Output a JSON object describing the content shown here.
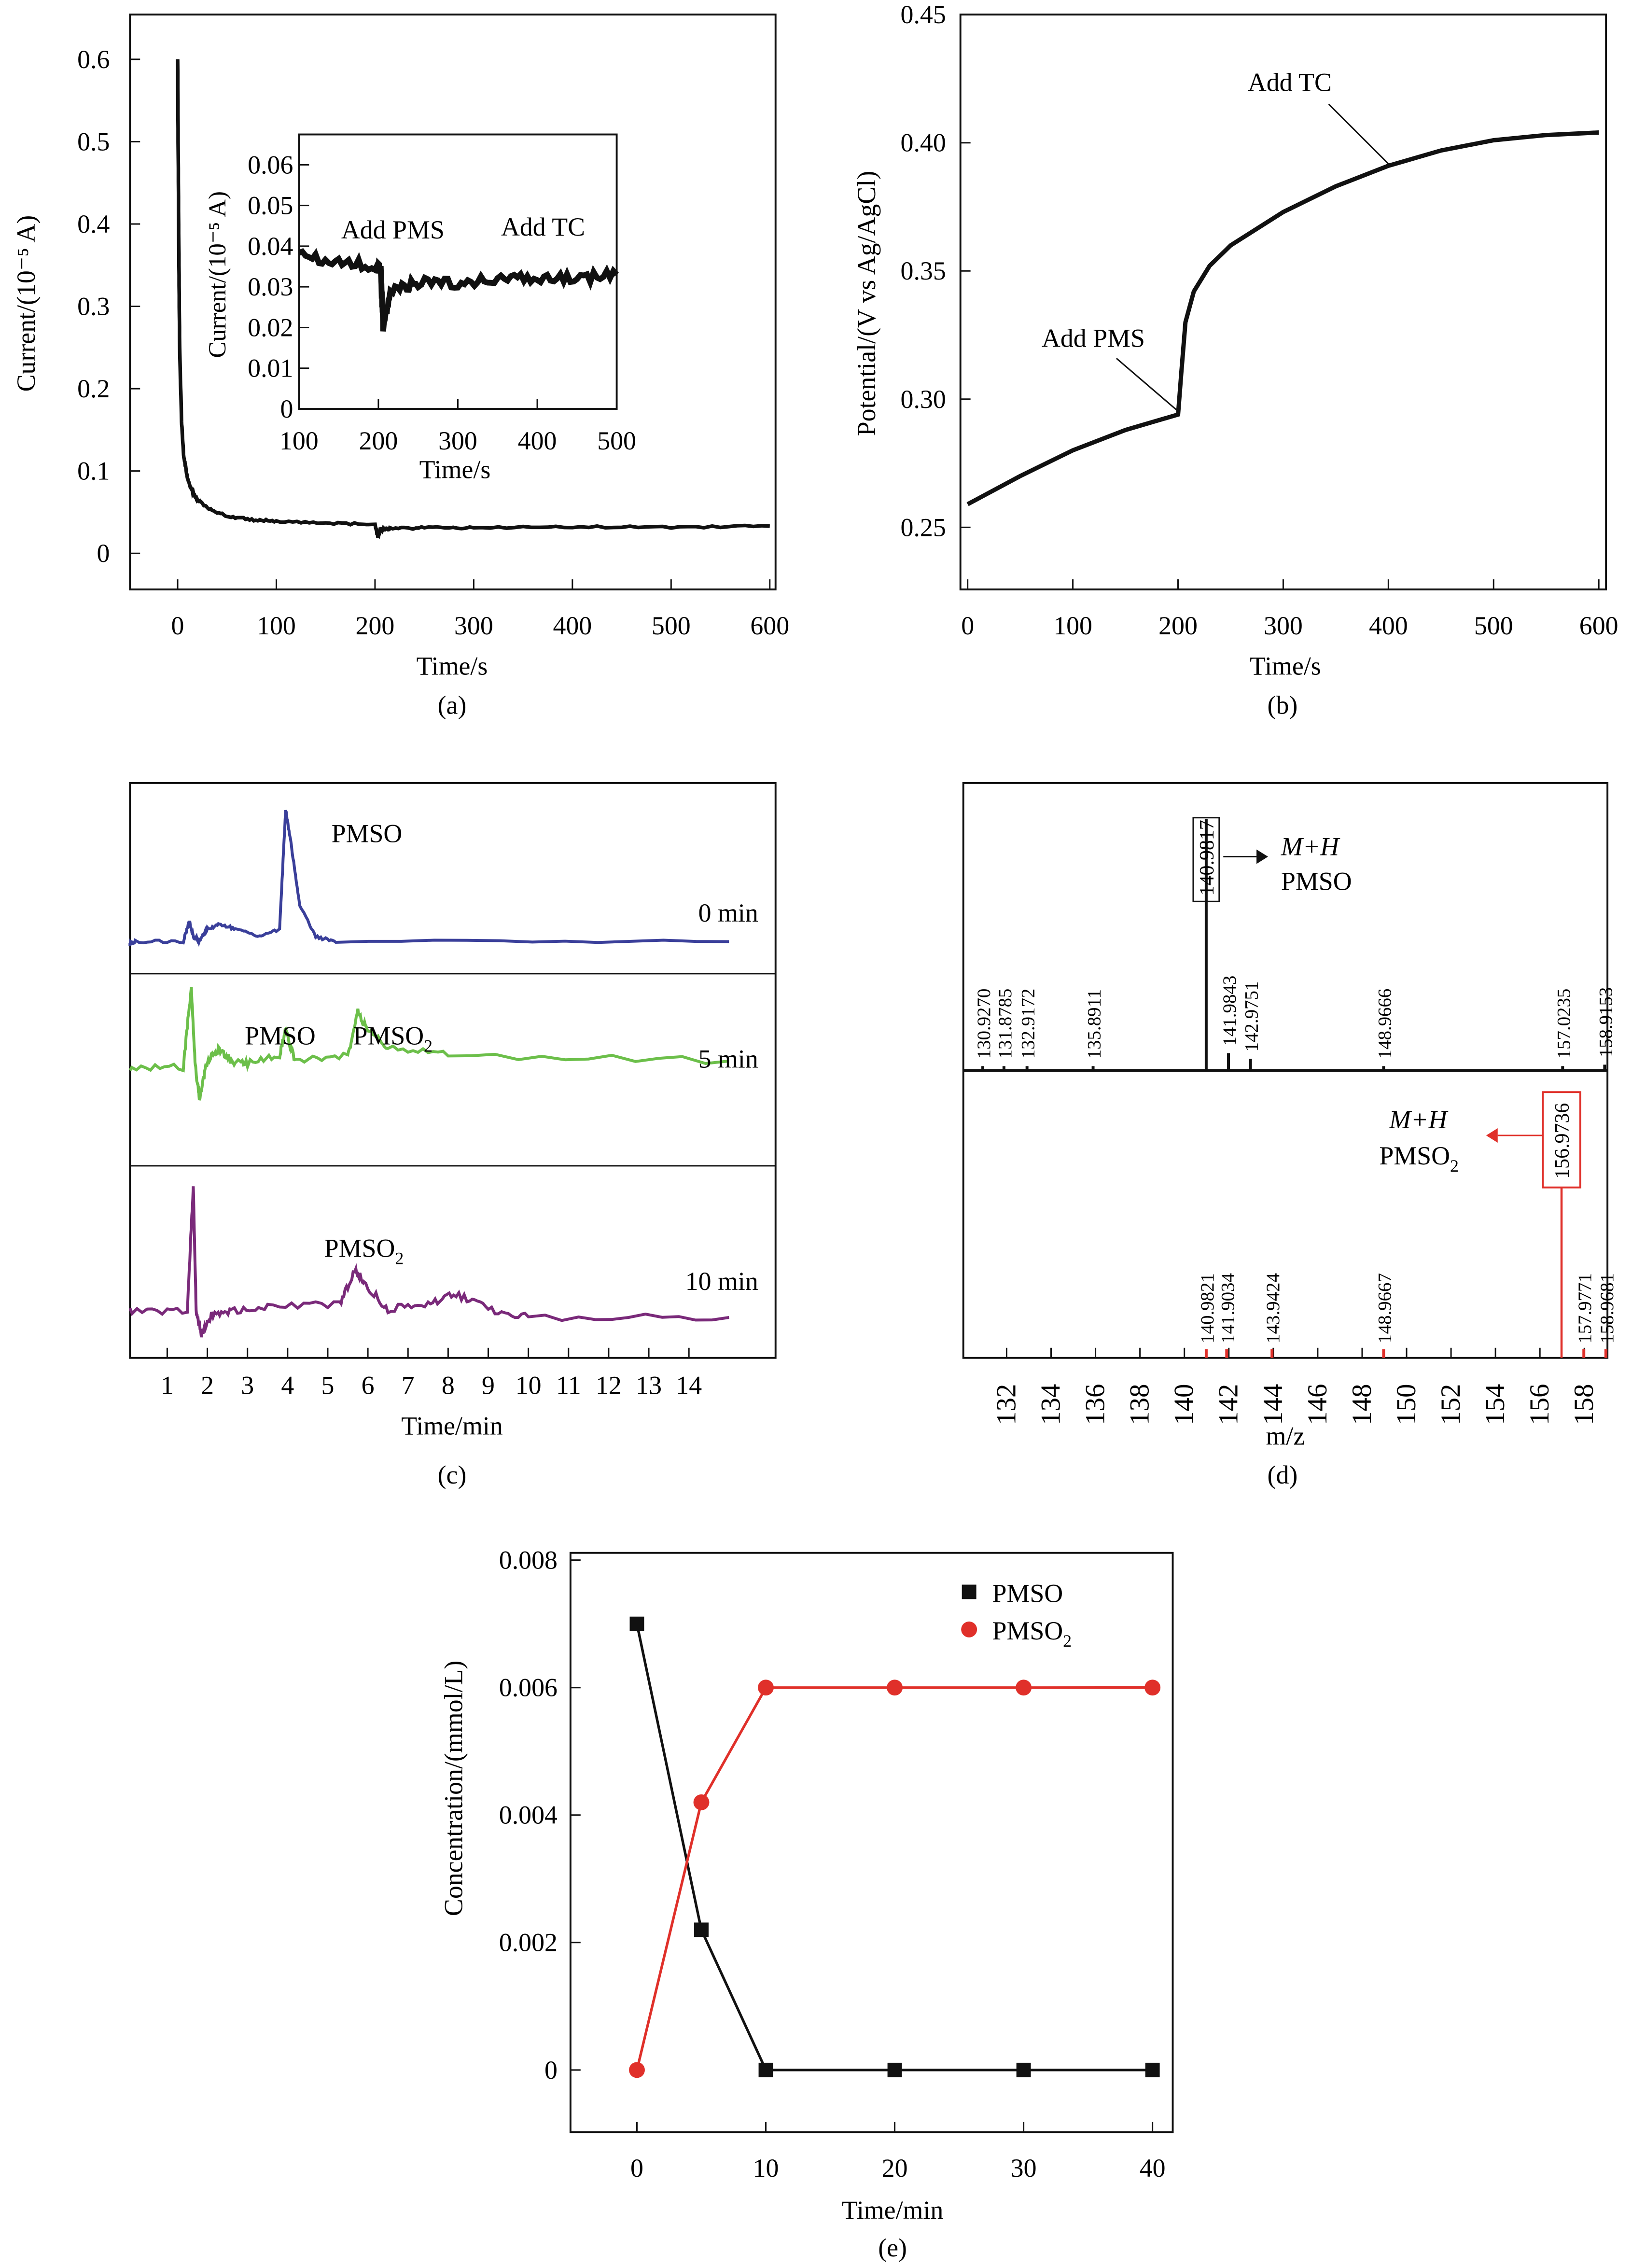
{
  "colors": {
    "black": "#111111",
    "red": "#e0302a",
    "blue": "#3a3f9a",
    "green": "#6cbf4a",
    "purple": "#7a2a7a"
  },
  "chart_data": [
    {
      "id": "a",
      "type": "line",
      "panel_label": "(a)",
      "xlabel": "Time/s",
      "ylabel": "Current/(10⁻⁵ A)",
      "xlim": [
        -50,
        600
      ],
      "ylim": [
        -0.04,
        0.66
      ],
      "xticks": [
        0,
        100,
        200,
        300,
        400,
        500,
        600
      ],
      "yticks": [
        0,
        0.1,
        0.2,
        0.3,
        0.4,
        0.5,
        0.6
      ],
      "series": [
        {
          "x": [
            0,
            1,
            2,
            4,
            6,
            10,
            15,
            20,
            30,
            50,
            75,
            100,
            150,
            200,
            203,
            206,
            215,
            250,
            300,
            400,
            500,
            600
          ],
          "y": [
            0.6,
            0.4,
            0.25,
            0.16,
            0.12,
            0.09,
            0.075,
            0.065,
            0.055,
            0.045,
            0.041,
            0.039,
            0.037,
            0.035,
            0.02,
            0.029,
            0.03,
            0.031,
            0.031,
            0.032,
            0.032,
            0.033
          ]
        }
      ],
      "inset": {
        "xlabel": "Time/s",
        "ylabel": "Current/(10⁻⁵ A)",
        "xlim": [
          100,
          500
        ],
        "ylim": [
          0,
          0.067
        ],
        "xticks": [
          100,
          200,
          300,
          400,
          500
        ],
        "yticks": [
          0,
          0.01,
          0.02,
          0.03,
          0.04,
          0.05,
          0.06
        ],
        "annotations": [
          "Add PMS",
          "Add TC"
        ],
        "series": [
          {
            "x": [
              100,
              150,
              200,
              203,
              206,
              215,
              250,
              300,
              350,
              400,
              450,
              500
            ],
            "y": [
              0.038,
              0.036,
              0.035,
              0.034,
              0.02,
              0.029,
              0.031,
              0.031,
              0.032,
              0.032,
              0.032,
              0.033
            ]
          }
        ]
      }
    },
    {
      "id": "b",
      "type": "line",
      "panel_label": "(b)",
      "xlabel": "Time/s",
      "ylabel": "Potential/(V vs Ag/AgCl)",
      "xlim": [
        0,
        600
      ],
      "ylim": [
        0.23,
        0.45
      ],
      "xticks": [
        0,
        100,
        200,
        300,
        400,
        500,
        600
      ],
      "yticks": [
        0.25,
        0.3,
        0.35,
        0.4,
        0.45
      ],
      "annotations": [
        "Add PMS",
        "Add TC"
      ],
      "series": [
        {
          "x": [
            0,
            50,
            100,
            150,
            200,
            203,
            207,
            215,
            230,
            250,
            300,
            350,
            400,
            450,
            500,
            550,
            600
          ],
          "y": [
            0.259,
            0.27,
            0.28,
            0.288,
            0.294,
            0.31,
            0.33,
            0.342,
            0.352,
            0.36,
            0.373,
            0.383,
            0.391,
            0.397,
            0.401,
            0.403,
            0.404
          ]
        }
      ]
    },
    {
      "id": "c",
      "type": "line",
      "panel_label": "(c)",
      "xlabel": "Time/min",
      "xlim": [
        0,
        15
      ],
      "xticks": [
        1,
        2,
        3,
        4,
        5,
        6,
        7,
        8,
        9,
        10,
        11,
        12,
        13,
        14
      ],
      "traces": [
        {
          "label": "0 min",
          "peaks": [
            "PMSO"
          ],
          "color": "#3a3f9a",
          "x": [
            0,
            0.2,
            1.4,
            1.55,
            1.65,
            1.8,
            2.0,
            2.3,
            2.7,
            3.3,
            3.8,
            3.95,
            4.05,
            4.3,
            4.7,
            5.2,
            15
          ],
          "y": [
            0,
            0.02,
            0.02,
            0.15,
            0.05,
            0.02,
            0.1,
            0.13,
            0.1,
            0.05,
            0.1,
            0.85,
            0.7,
            0.25,
            0.05,
            0.02,
            0.02
          ]
        },
        {
          "label": "5 min",
          "peaks": [
            "PMSO",
            "PMSO₂"
          ],
          "color": "#6cbf4a",
          "x": [
            0,
            1.4,
            1.6,
            1.7,
            1.8,
            2.0,
            2.3,
            2.6,
            3.0,
            3.8,
            3.95,
            4.2,
            5.5,
            5.75,
            6.0,
            6.5,
            8,
            15
          ],
          "y": [
            0.25,
            0.25,
            0.9,
            0.25,
            0,
            0.3,
            0.4,
            0.3,
            0.28,
            0.35,
            0.55,
            0.3,
            0.35,
            0.7,
            0.55,
            0.42,
            0.35,
            0.3
          ]
        },
        {
          "label": "10 min",
          "peaks": [
            "PMSO₂"
          ],
          "color": "#7a2a7a",
          "x": [
            0,
            1.5,
            1.65,
            1.72,
            1.85,
            2.1,
            2.6,
            3.5,
            5.3,
            5.7,
            5.9,
            6.5,
            7.5,
            8.2,
            9,
            10,
            15
          ],
          "y": [
            0.05,
            0.05,
            0.95,
            0.05,
            -0.12,
            0.02,
            0.05,
            0.08,
            0.1,
            0.35,
            0.25,
            0.06,
            0.1,
            0.17,
            0.06,
            0.0,
            0.0
          ]
        }
      ]
    },
    {
      "id": "d",
      "type": "bar",
      "panel_label": "(d)",
      "xlabel": "m/z",
      "xlim": [
        130.2,
        160
      ],
      "xticks": [
        132,
        134,
        136,
        138,
        140,
        142,
        144,
        146,
        148,
        150,
        152,
        154,
        156,
        158
      ],
      "top": {
        "annotation": [
          "M+H",
          "PMSO"
        ],
        "boxed": "140.9817",
        "peaks": [
          {
            "mz": 130.927,
            "label": "130.9270",
            "i": 1
          },
          {
            "mz": 131.8785,
            "label": "131.8785",
            "i": 1
          },
          {
            "mz": 132.9172,
            "label": "132.9172",
            "i": 0.5
          },
          {
            "mz": 135.8911,
            "label": "135.8911",
            "i": 0.5
          },
          {
            "mz": 140.9817,
            "label": "140.9817",
            "i": 100
          },
          {
            "mz": 141.9843,
            "label": "141.9843",
            "i": 6
          },
          {
            "mz": 142.9751,
            "label": "142.9751",
            "i": 4
          },
          {
            "mz": 148.9666,
            "label": "148.9666",
            "i": 1
          },
          {
            "mz": 157.0235,
            "label": "157.0235",
            "i": 1
          },
          {
            "mz": 158.9153,
            "label": "158.9153",
            "i": 2
          }
        ]
      },
      "bottom": {
        "annotation": [
          "M+H",
          "PMSO₂"
        ],
        "boxed": "156.9736",
        "peaks": [
          {
            "mz": 140.9821,
            "label": "140.9821",
            "i": 1
          },
          {
            "mz": 141.9034,
            "label": "141.9034",
            "i": 1
          },
          {
            "mz": 143.9424,
            "label": "143.9424",
            "i": 1
          },
          {
            "mz": 148.9667,
            "label": "148.9667",
            "i": 1
          },
          {
            "mz": 156.9736,
            "label": "156.9736",
            "i": 100
          },
          {
            "mz": 157.9771,
            "label": "157.9771",
            "i": 1
          },
          {
            "mz": 158.9681,
            "label": "158.9681",
            "i": 1
          }
        ]
      }
    },
    {
      "id": "e",
      "type": "line",
      "panel_label": "(e)",
      "xlabel": "Time/min",
      "ylabel": "Concentration/(mmol/L)",
      "xlim": [
        -5,
        43
      ],
      "ylim": [
        -0.001,
        0.008
      ],
      "xticks": [
        0,
        10,
        20,
        30,
        40
      ],
      "yticks": [
        0,
        0.002,
        0.004,
        0.006,
        0.008
      ],
      "ytick_labels": [
        "0",
        "0.002",
        "0.004",
        "0.006",
        "0.008"
      ],
      "legend": "top-right",
      "x": [
        0,
        5,
        10,
        20,
        30,
        40
      ],
      "series": [
        {
          "name": "PMSO",
          "color": "#111111",
          "marker": "square",
          "values": [
            0.007,
            0.0022,
            0,
            0,
            0,
            0
          ]
        },
        {
          "name": "PMSO₂",
          "color": "#e0302a",
          "marker": "circle",
          "values": [
            0,
            0.0042,
            0.006,
            0.006,
            0.006,
            0.006
          ]
        }
      ]
    }
  ]
}
